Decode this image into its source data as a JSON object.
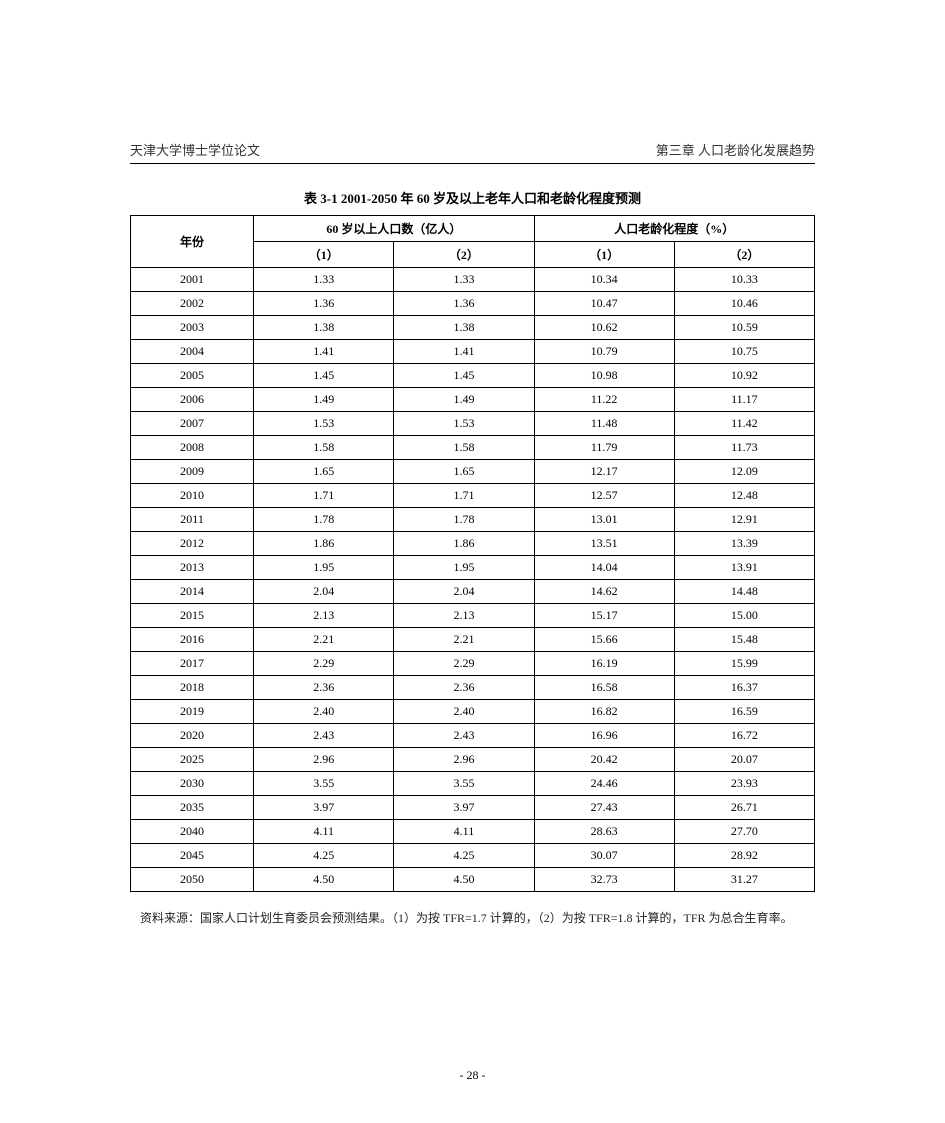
{
  "header": {
    "left": "天津大学博士学位论文",
    "right": "第三章  人口老龄化发展趋势"
  },
  "table": {
    "title": "表 3-1   2001-2050 年 60 岁及以上老年人口和老龄化程度预测",
    "col_year": "年份",
    "group_pop": "60 岁以上人口数（亿人）",
    "group_aging": "人口老龄化程度（%）",
    "sub1": "（1）",
    "sub2": "（2）",
    "sub3": "（1）",
    "sub4": "（2）",
    "rows": [
      {
        "y": "2001",
        "a": "1.33",
        "b": "1.33",
        "c": "10.34",
        "d": "10.33"
      },
      {
        "y": "2002",
        "a": "1.36",
        "b": "1.36",
        "c": "10.47",
        "d": "10.46"
      },
      {
        "y": "2003",
        "a": "1.38",
        "b": "1.38",
        "c": "10.62",
        "d": "10.59"
      },
      {
        "y": "2004",
        "a": "1.41",
        "b": "1.41",
        "c": "10.79",
        "d": "10.75"
      },
      {
        "y": "2005",
        "a": "1.45",
        "b": "1.45",
        "c": "10.98",
        "d": "10.92"
      },
      {
        "y": "2006",
        "a": "1.49",
        "b": "1.49",
        "c": "11.22",
        "d": "11.17"
      },
      {
        "y": "2007",
        "a": "1.53",
        "b": "1.53",
        "c": "11.48",
        "d": "11.42"
      },
      {
        "y": "2008",
        "a": "1.58",
        "b": "1.58",
        "c": "11.79",
        "d": "11.73"
      },
      {
        "y": "2009",
        "a": "1.65",
        "b": "1.65",
        "c": "12.17",
        "d": "12.09"
      },
      {
        "y": "2010",
        "a": "1.71",
        "b": "1.71",
        "c": "12.57",
        "d": "12.48"
      },
      {
        "y": "2011",
        "a": "1.78",
        "b": "1.78",
        "c": "13.01",
        "d": "12.91"
      },
      {
        "y": "2012",
        "a": "1.86",
        "b": "1.86",
        "c": "13.51",
        "d": "13.39"
      },
      {
        "y": "2013",
        "a": "1.95",
        "b": "1.95",
        "c": "14.04",
        "d": "13.91"
      },
      {
        "y": "2014",
        "a": "2.04",
        "b": "2.04",
        "c": "14.62",
        "d": "14.48"
      },
      {
        "y": "2015",
        "a": "2.13",
        "b": "2.13",
        "c": "15.17",
        "d": "15.00"
      },
      {
        "y": "2016",
        "a": "2.21",
        "b": "2.21",
        "c": "15.66",
        "d": "15.48"
      },
      {
        "y": "2017",
        "a": "2.29",
        "b": "2.29",
        "c": "16.19",
        "d": "15.99"
      },
      {
        "y": "2018",
        "a": "2.36",
        "b": "2.36",
        "c": "16.58",
        "d": "16.37"
      },
      {
        "y": "2019",
        "a": "2.40",
        "b": "2.40",
        "c": "16.82",
        "d": "16.59"
      },
      {
        "y": "2020",
        "a": "2.43",
        "b": "2.43",
        "c": "16.96",
        "d": "16.72"
      },
      {
        "y": "2025",
        "a": "2.96",
        "b": "2.96",
        "c": "20.42",
        "d": "20.07"
      },
      {
        "y": "2030",
        "a": "3.55",
        "b": "3.55",
        "c": "24.46",
        "d": "23.93"
      },
      {
        "y": "2035",
        "a": "3.97",
        "b": "3.97",
        "c": "27.43",
        "d": "26.71"
      },
      {
        "y": "2040",
        "a": "4.11",
        "b": "4.11",
        "c": "28.63",
        "d": "27.70"
      },
      {
        "y": "2045",
        "a": "4.25",
        "b": "4.25",
        "c": "30.07",
        "d": "28.92"
      },
      {
        "y": "2050",
        "a": "4.50",
        "b": "4.50",
        "c": "32.73",
        "d": "31.27"
      }
    ]
  },
  "footnote": "资料来源：国家人口计划生育委员会预测结果。（1）为按 TFR=1.7 计算的，（2）为按 TFR=1.8 计算的，TFR 为总合生育率。",
  "page_number": "- 28 -"
}
